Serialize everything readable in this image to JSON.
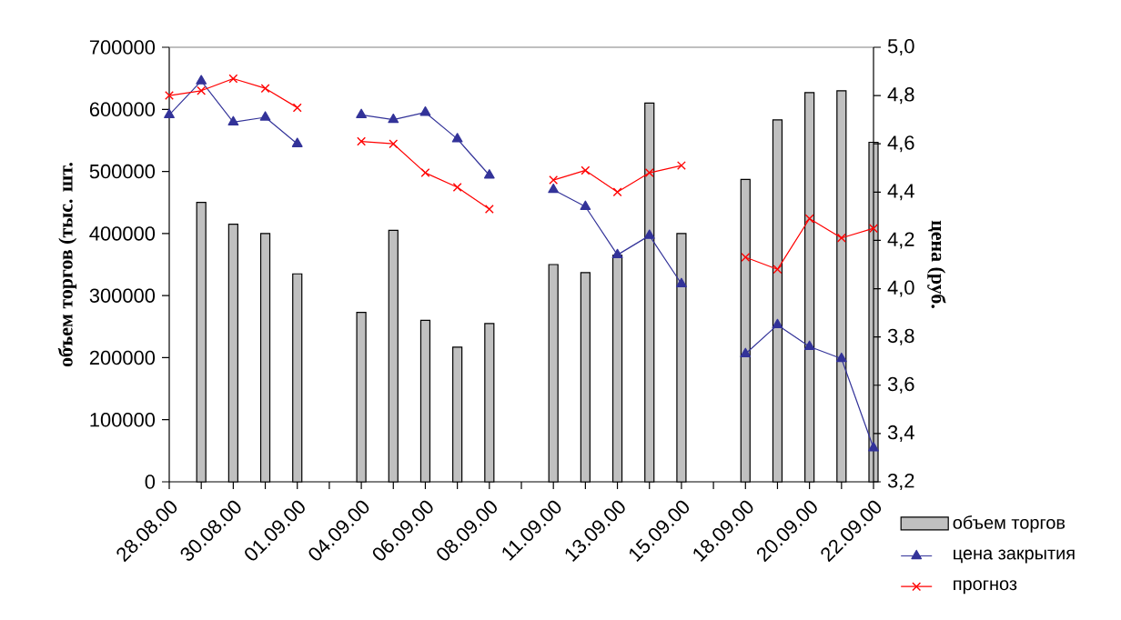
{
  "chart_data": {
    "type": "bar",
    "categories": [
      "28.08.00",
      null,
      "30.08.00",
      null,
      "01.09.00",
      null,
      "04.09.00",
      null,
      "06.09.00",
      null,
      "08.09.00",
      null,
      "11.09.00",
      null,
      "13.09.00",
      null,
      "15.09.00",
      null,
      "18.09.00",
      null,
      "20.09.00",
      null,
      "22.09.00"
    ],
    "ylabel": "объем торгов (тыс. шт.",
    "y2label": "цена (руб.",
    "ylim": [
      0,
      700000
    ],
    "yticks": [
      0,
      100000,
      200000,
      300000,
      400000,
      500000,
      600000,
      700000
    ],
    "y2lim": [
      3.2,
      5.0
    ],
    "y2ticks": [
      {
        "value": 3.2,
        "label": "3,2"
      },
      {
        "value": 3.4,
        "label": "3,4"
      },
      {
        "value": 3.6,
        "label": "3,6"
      },
      {
        "value": 3.8,
        "label": "3,8"
      },
      {
        "value": 4.0,
        "label": "4,0"
      },
      {
        "value": 4.2,
        "label": "4,2"
      },
      {
        "value": 4.4,
        "label": "4,4"
      },
      {
        "value": 4.6,
        "label": "4,6"
      },
      {
        "value": 4.8,
        "label": "4,8"
      },
      {
        "value": 5.0,
        "label": "5,0"
      }
    ],
    "legend": "right",
    "grid": false,
    "series": [
      {
        "name": "объем торгов",
        "color": "#c0c0c0",
        "values": [
          null,
          450000,
          415000,
          400000,
          335000,
          null,
          273000,
          405000,
          260000,
          217000,
          255000,
          null,
          350000,
          337000,
          365000,
          610000,
          400000,
          null,
          487000,
          583000,
          627000,
          630000,
          547000
        ]
      },
      {
        "name": "цена закрытия",
        "type": "line",
        "axis": "y2",
        "color": "#333399",
        "marker": "triangle",
        "values": [
          4.72,
          4.86,
          4.69,
          4.71,
          4.6,
          null,
          4.72,
          4.7,
          4.73,
          4.62,
          4.47,
          null,
          4.41,
          4.34,
          4.14,
          4.22,
          4.02,
          null,
          3.73,
          3.85,
          3.76,
          3.71,
          3.34
        ]
      },
      {
        "name": "прогноз",
        "type": "line",
        "axis": "y2",
        "color": "#ff0000",
        "marker": "cross",
        "values": [
          4.8,
          4.82,
          4.87,
          4.83,
          4.75,
          null,
          4.61,
          4.6,
          4.48,
          4.42,
          4.33,
          null,
          4.45,
          4.49,
          4.4,
          4.48,
          4.51,
          null,
          4.13,
          4.08,
          4.29,
          4.21,
          4.25
        ]
      }
    ]
  }
}
